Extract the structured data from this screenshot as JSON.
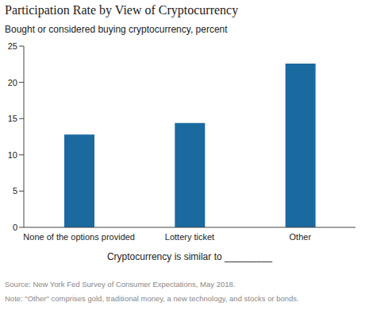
{
  "chart_data": {
    "type": "bar",
    "title": "Participation Rate by View of Cryptocurrency",
    "subtitle": "Bought or considered buying cryptocurrency, percent",
    "xlabel": "Cryptocurrency is similar to _________",
    "source": "Source: New York Fed Survey of Consumer Expectations, May 2018.",
    "note": "Note: \"Other\" comprises gold, traditional money, a new technology, and stocks or bonds.",
    "categories": [
      "None of the options provided",
      "Lottery ticket",
      "Other"
    ],
    "values": [
      12.8,
      14.4,
      22.6
    ],
    "color": "#1a6aa0",
    "ylim": [
      0,
      25
    ],
    "yticks": [
      0,
      5,
      10,
      15,
      20,
      25
    ],
    "grid": false
  }
}
